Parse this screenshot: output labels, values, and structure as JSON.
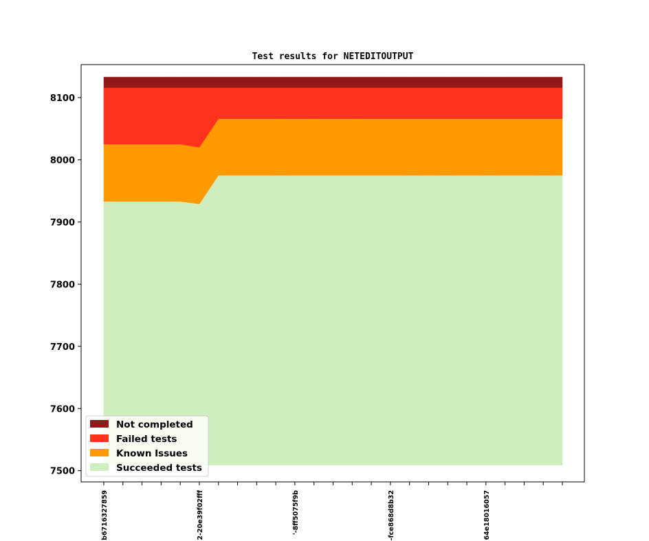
{
  "chart_data": {
    "type": "area",
    "stacked": true,
    "title": "Test results for NETEDITOUTPUT",
    "xlabel": "",
    "ylabel": "",
    "ylim": [
      7482,
      8153
    ],
    "yticks": [
      7500,
      7600,
      7700,
      7800,
      7900,
      8000,
      8100
    ],
    "baseline": 7509,
    "x_count": 25,
    "x_tick_labels": [
      {
        "index": 0,
        "label": "b6716327859"
      },
      {
        "index": 5,
        "label": "2-20e39f02fff"
      },
      {
        "index": 10,
        "label": "'-8ff5075f9b"
      },
      {
        "index": 15,
        "label": "-fce868d8b32"
      },
      {
        "index": 20,
        "label": "64e18016057"
      }
    ],
    "series": [
      {
        "name": "Succeeded tests",
        "color": "#cfedbf",
        "values": [
          7933,
          7933,
          7933,
          7933,
          7933,
          7929,
          7975,
          7975,
          7975,
          7975,
          7975,
          7975,
          7975,
          7975,
          7975,
          7975,
          7975,
          7975,
          7975,
          7975,
          7975,
          7975,
          7975,
          7975,
          7975
        ]
      },
      {
        "name": "Known Issues",
        "color": "#ff9900",
        "values": [
          8025,
          8025,
          8025,
          8025,
          8025,
          8020,
          8066,
          8066,
          8066,
          8066,
          8066,
          8066,
          8066,
          8066,
          8066,
          8066,
          8066,
          8066,
          8066,
          8066,
          8066,
          8066,
          8066,
          8066,
          8066
        ]
      },
      {
        "name": "Failed tests",
        "color": "#ff331c",
        "values": [
          8116,
          8116,
          8116,
          8116,
          8116,
          8116,
          8116,
          8116,
          8116,
          8116,
          8116,
          8116,
          8116,
          8116,
          8116,
          8116,
          8116,
          8116,
          8116,
          8116,
          8116,
          8116,
          8116,
          8116,
          8116
        ]
      },
      {
        "name": "Not completed",
        "color": "#911919",
        "values": [
          8133,
          8133,
          8133,
          8133,
          8133,
          8133,
          8133,
          8133,
          8133,
          8133,
          8133,
          8133,
          8133,
          8133,
          8133,
          8133,
          8133,
          8133,
          8133,
          8133,
          8133,
          8133,
          8133,
          8133,
          8133
        ]
      }
    ],
    "legend": {
      "placement": "lower-left",
      "entries": [
        "Not completed",
        "Failed tests",
        "Known Issues",
        "Succeeded tests"
      ]
    },
    "grid": false
  }
}
